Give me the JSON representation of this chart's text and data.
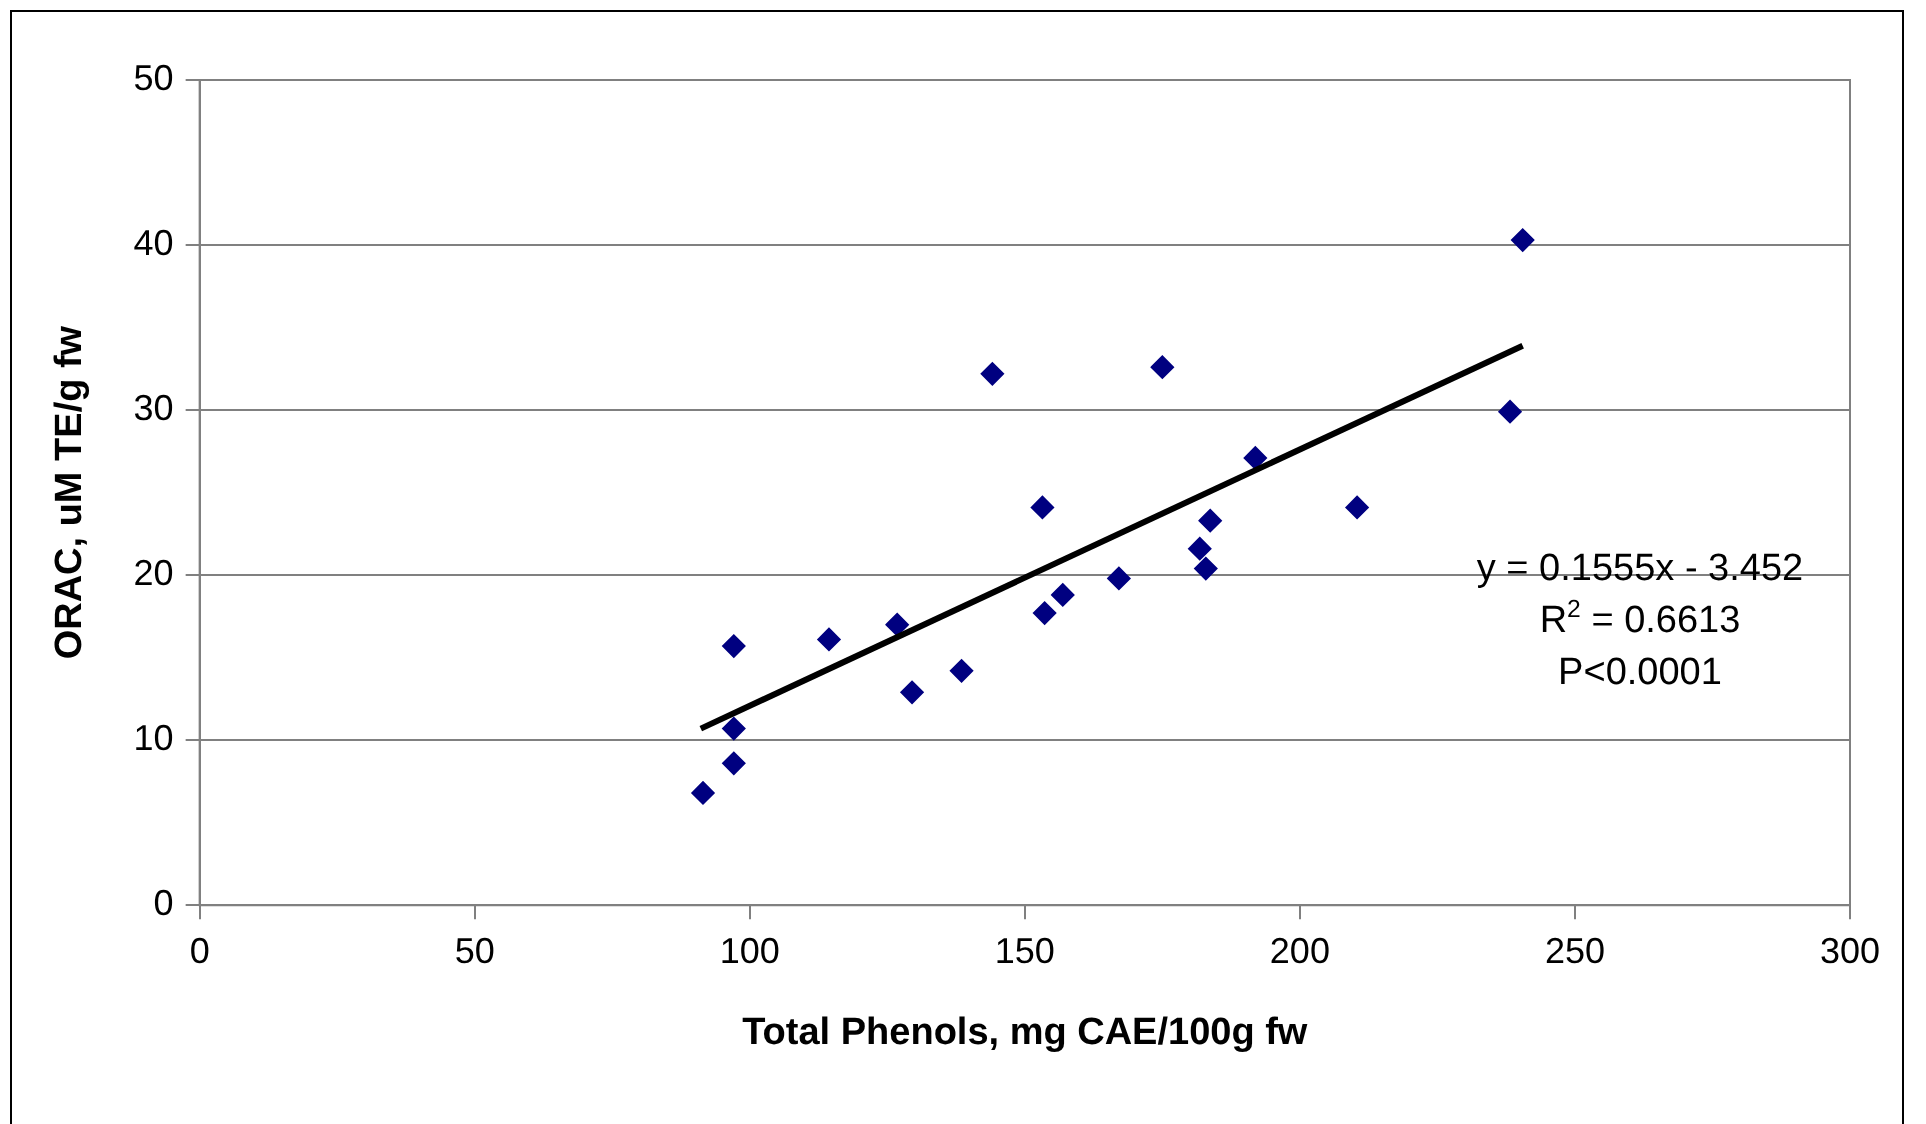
{
  "chart_data": {
    "type": "scatter",
    "xlabel": "Total Phenols, mg CAE/100g fw",
    "ylabel": "ORAC, uM TE/g fw",
    "series": [
      {
        "color": "#000080",
        "marker": "diamond",
        "x": [
          91.5,
          97.1,
          97.1,
          97.1,
          114.4,
          126.8,
          129.5,
          138.5,
          144.1,
          153.2,
          153.6,
          156.9,
          167.1,
          175,
          181.8,
          182.9,
          183.7,
          191.9,
          210.4,
          238.2,
          240.5
        ],
        "values": [
          6.8,
          8.6,
          10.7,
          15.7,
          16.1,
          17.0,
          12.9,
          14.2,
          32.2,
          24.1,
          17.7,
          18.8,
          19.8,
          32.6,
          21.6,
          20.4,
          23.3,
          27.1,
          24.1,
          29.9,
          40.3
        ]
      },
      {
        "type": "line",
        "color": "#000000",
        "marker": "none",
        "x": [
          91.1,
          240.5
        ],
        "values": [
          10.7,
          33.9
        ]
      }
    ],
    "xlim": [
      0,
      300
    ],
    "xticks": [
      0,
      50,
      100,
      150,
      200,
      250,
      300
    ],
    "ylim": [
      0,
      50
    ],
    "yticks": [
      0,
      10,
      20,
      30,
      40,
      50
    ],
    "grid": "y",
    "legend": false,
    "annotations": [
      "y = 0.1555x - 3.452",
      "R$^{2}$ = 0.6613",
      "P<0.0001"
    ]
  }
}
